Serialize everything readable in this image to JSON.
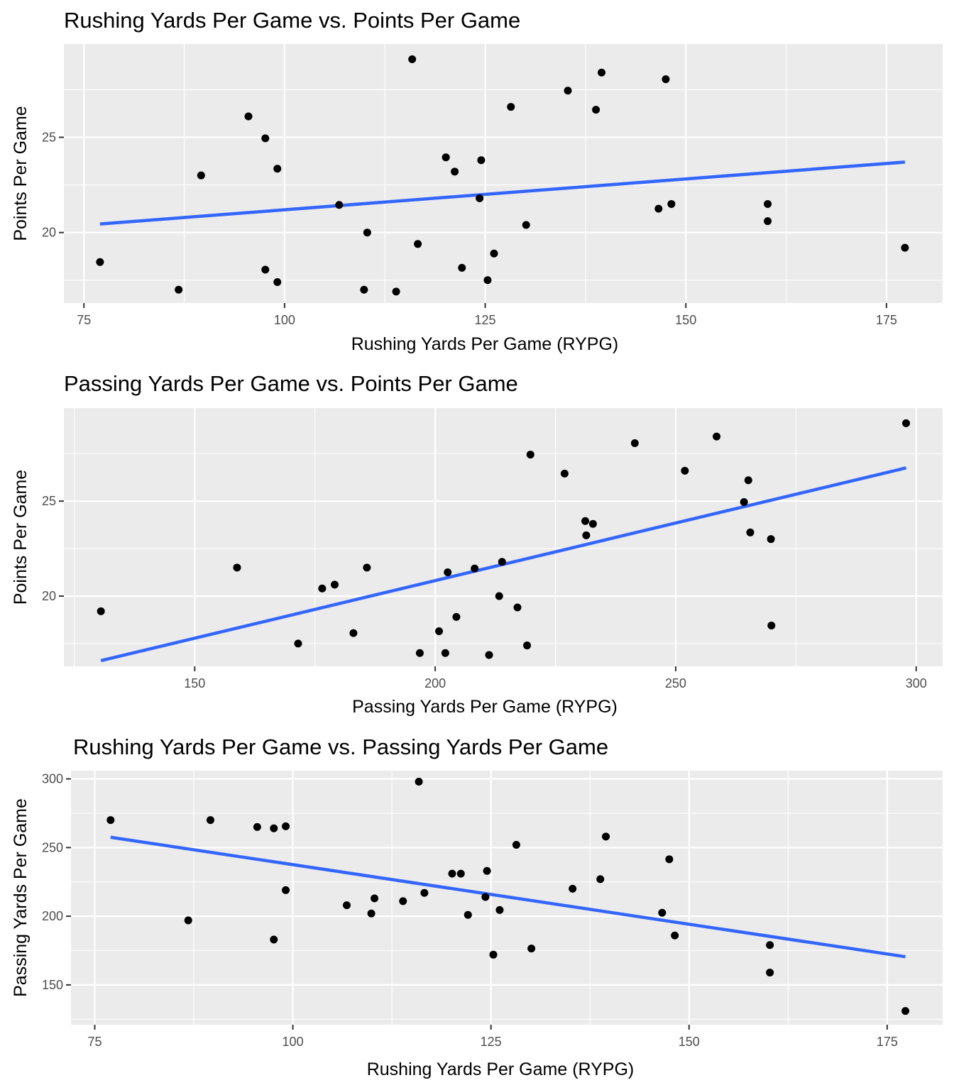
{
  "chart_data": [
    {
      "type": "scatter",
      "title": "Rushing Yards Per Game vs. Points Per Game",
      "xlabel": "Rushing Yards Per Game (RYPG)",
      "ylabel": "Points Per Game",
      "xlim": [
        72.5,
        182
      ],
      "ylim": [
        16.3,
        29.9
      ],
      "xticks": [
        75,
        100,
        125,
        150,
        175
      ],
      "yticks": [
        20,
        25
      ],
      "grid": true,
      "fit_line": {
        "x": [
          77,
          177.3
        ],
        "y": [
          20.45,
          23.7
        ],
        "color": "#3366ff"
      },
      "points": [
        {
          "x": 77,
          "y": 18.45
        },
        {
          "x": 86.8,
          "y": 17.0
        },
        {
          "x": 89.6,
          "y": 23.0
        },
        {
          "x": 95.5,
          "y": 26.1
        },
        {
          "x": 97.6,
          "y": 24.95
        },
        {
          "x": 97.6,
          "y": 18.05
        },
        {
          "x": 99.1,
          "y": 23.35
        },
        {
          "x": 99.1,
          "y": 17.4
        },
        {
          "x": 106.8,
          "y": 21.45
        },
        {
          "x": 109.9,
          "y": 17.0
        },
        {
          "x": 110.3,
          "y": 20.0
        },
        {
          "x": 113.9,
          "y": 16.9
        },
        {
          "x": 115.9,
          "y": 29.1
        },
        {
          "x": 116.6,
          "y": 19.4
        },
        {
          "x": 120.1,
          "y": 23.95
        },
        {
          "x": 121.2,
          "y": 23.2
        },
        {
          "x": 122.1,
          "y": 18.15
        },
        {
          "x": 124.3,
          "y": 21.8
        },
        {
          "x": 124.5,
          "y": 23.8
        },
        {
          "x": 125.3,
          "y": 17.5
        },
        {
          "x": 126.1,
          "y": 18.9
        },
        {
          "x": 128.2,
          "y": 26.6
        },
        {
          "x": 130.1,
          "y": 20.4
        },
        {
          "x": 135.3,
          "y": 27.45
        },
        {
          "x": 138.8,
          "y": 26.45
        },
        {
          "x": 139.5,
          "y": 28.4
        },
        {
          "x": 146.6,
          "y": 21.25
        },
        {
          "x": 147.5,
          "y": 28.05
        },
        {
          "x": 148.2,
          "y": 21.5
        },
        {
          "x": 160.2,
          "y": 21.5
        },
        {
          "x": 160.2,
          "y": 20.6
        },
        {
          "x": 177.3,
          "y": 19.2
        }
      ]
    },
    {
      "type": "scatter",
      "title": "Passing Yards Per Game vs. Points Per Game",
      "xlabel": "Passing Yards Per Game (RYPG)",
      "ylabel": "Points Per Game",
      "xlim": [
        122.8,
        305.5
      ],
      "ylim": [
        16.3,
        29.9
      ],
      "xticks": [
        150,
        200,
        250,
        300
      ],
      "yticks": [
        20,
        25
      ],
      "grid": true,
      "fit_line": {
        "x": [
          130.5,
          297.9
        ],
        "y": [
          16.6,
          26.75
        ],
        "color": "#3366ff"
      },
      "points": [
        {
          "x": 130.5,
          "y": 19.2
        },
        {
          "x": 158.8,
          "y": 21.5
        },
        {
          "x": 171.5,
          "y": 17.5
        },
        {
          "x": 176.5,
          "y": 20.4
        },
        {
          "x": 179.1,
          "y": 20.6
        },
        {
          "x": 183.0,
          "y": 18.05
        },
        {
          "x": 185.8,
          "y": 21.5
        },
        {
          "x": 196.8,
          "y": 17.0
        },
        {
          "x": 200.8,
          "y": 18.15
        },
        {
          "x": 202.1,
          "y": 17.0
        },
        {
          "x": 202.6,
          "y": 21.25
        },
        {
          "x": 204.4,
          "y": 18.9
        },
        {
          "x": 208.2,
          "y": 21.45
        },
        {
          "x": 211.2,
          "y": 16.9
        },
        {
          "x": 213.3,
          "y": 20.0
        },
        {
          "x": 213.9,
          "y": 21.8
        },
        {
          "x": 217.1,
          "y": 19.4
        },
        {
          "x": 219.1,
          "y": 17.4
        },
        {
          "x": 219.8,
          "y": 27.45
        },
        {
          "x": 226.9,
          "y": 26.45
        },
        {
          "x": 231.2,
          "y": 23.95
        },
        {
          "x": 231.4,
          "y": 23.2
        },
        {
          "x": 232.8,
          "y": 23.8
        },
        {
          "x": 241.5,
          "y": 28.05
        },
        {
          "x": 251.9,
          "y": 26.6
        },
        {
          "x": 258.5,
          "y": 28.4
        },
        {
          "x": 264.2,
          "y": 24.95
        },
        {
          "x": 265.1,
          "y": 26.1
        },
        {
          "x": 265.5,
          "y": 23.35
        },
        {
          "x": 269.8,
          "y": 23.0
        },
        {
          "x": 269.9,
          "y": 18.45
        },
        {
          "x": 297.9,
          "y": 29.1
        }
      ]
    },
    {
      "type": "scatter",
      "title": "Rushing Yards Per Game vs. Passing Yards Per Game",
      "xlabel": "Rushing Yards Per Game (RYPG)",
      "ylabel": "Passing Yards Per Game",
      "xlim": [
        72,
        182
      ],
      "ylim": [
        121,
        306
      ],
      "xticks": [
        75,
        100,
        125,
        150,
        175
      ],
      "yticks": [
        150,
        200,
        250,
        300
      ],
      "grid": true,
      "fit_line": {
        "x": [
          77,
          177.3
        ],
        "y": [
          257.5,
          170.5
        ],
        "color": "#3366ff"
      },
      "points": [
        {
          "x": 77,
          "y": 270
        },
        {
          "x": 86.8,
          "y": 197
        },
        {
          "x": 89.6,
          "y": 270
        },
        {
          "x": 95.5,
          "y": 265
        },
        {
          "x": 97.6,
          "y": 264
        },
        {
          "x": 97.6,
          "y": 183
        },
        {
          "x": 99.1,
          "y": 265.5
        },
        {
          "x": 99.1,
          "y": 219
        },
        {
          "x": 106.8,
          "y": 208
        },
        {
          "x": 109.9,
          "y": 202
        },
        {
          "x": 110.3,
          "y": 213
        },
        {
          "x": 113.9,
          "y": 211
        },
        {
          "x": 115.9,
          "y": 298
        },
        {
          "x": 116.6,
          "y": 217
        },
        {
          "x": 120.1,
          "y": 231
        },
        {
          "x": 121.2,
          "y": 231
        },
        {
          "x": 122.1,
          "y": 201
        },
        {
          "x": 124.3,
          "y": 214
        },
        {
          "x": 124.5,
          "y": 233
        },
        {
          "x": 125.3,
          "y": 172
        },
        {
          "x": 126.1,
          "y": 204.5
        },
        {
          "x": 128.2,
          "y": 252
        },
        {
          "x": 130.1,
          "y": 176.5
        },
        {
          "x": 135.3,
          "y": 220
        },
        {
          "x": 138.8,
          "y": 227
        },
        {
          "x": 139.5,
          "y": 258
        },
        {
          "x": 146.6,
          "y": 202.5
        },
        {
          "x": 147.5,
          "y": 241.5
        },
        {
          "x": 148.2,
          "y": 186
        },
        {
          "x": 160.2,
          "y": 179
        },
        {
          "x": 160.2,
          "y": 159
        },
        {
          "x": 177.3,
          "y": 131
        }
      ]
    }
  ]
}
